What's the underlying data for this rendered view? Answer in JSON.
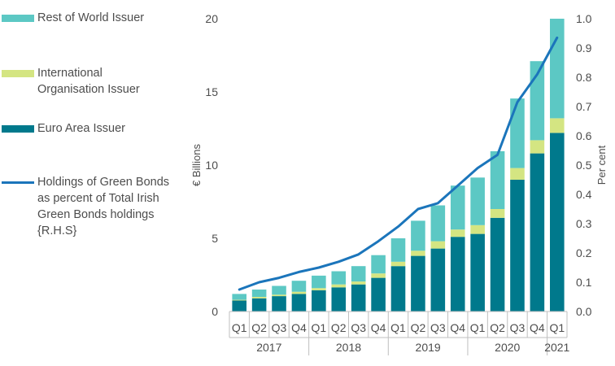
{
  "chart_data": {
    "type": "bar",
    "stacked": true,
    "categories": [
      "Q1",
      "Q2",
      "Q3",
      "Q4",
      "Q1",
      "Q2",
      "Q3",
      "Q4",
      "Q1",
      "Q2",
      "Q3",
      "Q4",
      "Q1",
      "Q2",
      "Q3",
      "Q4",
      "Q1"
    ],
    "years": [
      {
        "label": "2017",
        "count": 4
      },
      {
        "label": "2018",
        "count": 4
      },
      {
        "label": "2019",
        "count": 4
      },
      {
        "label": "2020",
        "count": 4
      },
      {
        "label": "2021",
        "count": 1
      }
    ],
    "series": [
      {
        "name": "Euro Area Issuer",
        "color": "#00798C",
        "values": [
          0.75,
          0.9,
          1.05,
          1.2,
          1.45,
          1.65,
          1.85,
          2.3,
          3.1,
          3.8,
          4.3,
          5.1,
          5.3,
          6.4,
          9.0,
          10.8,
          12.2
        ]
      },
      {
        "name": "International Organisation Issuer",
        "color": "#D4E582",
        "values": [
          0.05,
          0.1,
          0.1,
          0.15,
          0.15,
          0.2,
          0.2,
          0.3,
          0.3,
          0.35,
          0.5,
          0.5,
          0.6,
          0.6,
          0.8,
          0.9,
          1.0
        ]
      },
      {
        "name": "Rest of World Issuer",
        "color": "#5CC8C4",
        "values": [
          0.4,
          0.5,
          0.6,
          0.75,
          0.85,
          0.9,
          1.05,
          1.25,
          1.6,
          2.05,
          2.45,
          3.0,
          3.25,
          3.95,
          4.75,
          5.4,
          6.8
        ]
      }
    ],
    "line_series": {
      "name": "Holdings of Green Bonds as percent of Total Irish Green Bonds holdings {R.H.S}",
      "color": "#1B75BB",
      "values": [
        0.075,
        0.1,
        0.115,
        0.135,
        0.15,
        0.17,
        0.195,
        0.24,
        0.29,
        0.35,
        0.37,
        0.43,
        0.49,
        0.535,
        0.715,
        0.81,
        0.935
      ]
    },
    "ylabel": "€ Billions",
    "ylim": [
      0,
      20
    ],
    "yticks": [
      "0",
      "5",
      "10",
      "15",
      "20"
    ],
    "y2label": "Per cent",
    "y2lim": [
      0,
      1
    ],
    "y2ticks": [
      "0.0",
      "0.1",
      "0.2",
      "0.3",
      "0.4",
      "0.5",
      "0.6",
      "0.7",
      "0.8",
      "0.9",
      "1.0"
    ],
    "legend": [
      {
        "label": "Rest of World Issuer",
        "kind": "bar",
        "color": "#5CC8C4"
      },
      {
        "label": "International Organisation Issuer",
        "kind": "bar",
        "color": "#D4E582"
      },
      {
        "label": "Euro Area Issuer",
        "kind": "bar",
        "color": "#00798C"
      },
      {
        "label": "Holdings of Green Bonds as percent of Total Irish Green Bonds holdings {R.H.S}",
        "kind": "line",
        "color": "#1B75BB"
      }
    ]
  }
}
